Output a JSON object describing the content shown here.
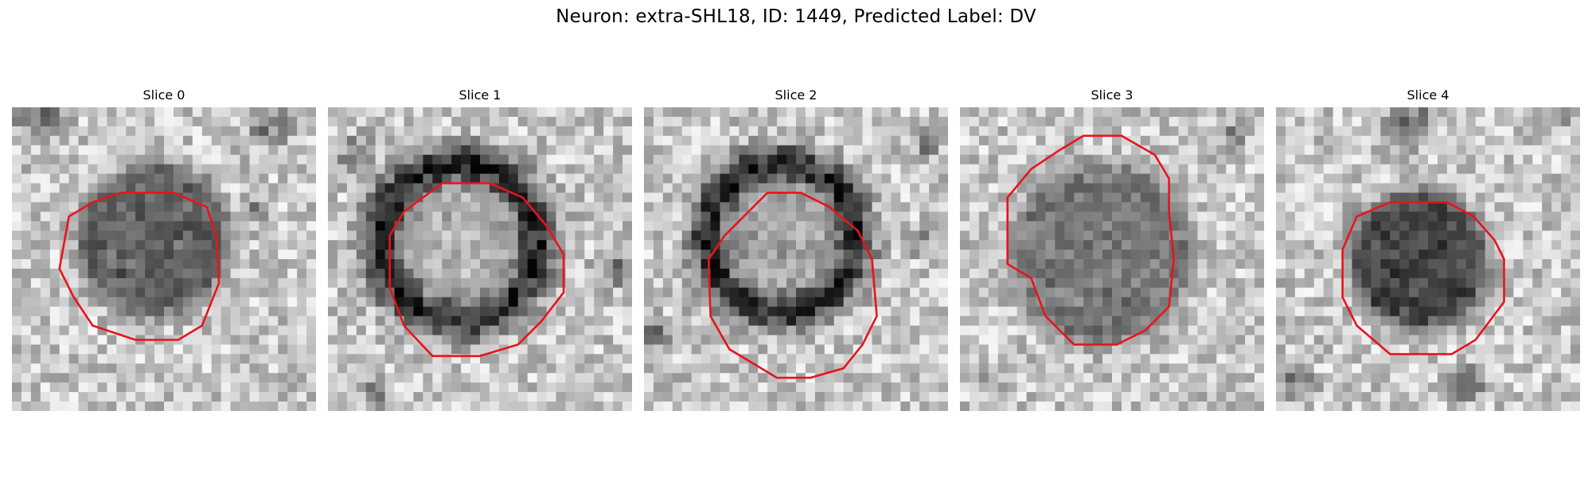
{
  "figure": {
    "title": "Neuron: extra-SHL18, ID: 1449, Predicted Label: DV"
  },
  "colors": {
    "outline": "#e8141a",
    "background": "#ffffff"
  },
  "panels": [
    {
      "title": "Slice 0",
      "cell": "dark-solid-blob"
    },
    {
      "title": "Slice 1",
      "cell": "dark-ring-light-center"
    },
    {
      "title": "Slice 2",
      "cell": "dark-ring-gray-center"
    },
    {
      "title": "Slice 3",
      "cell": "speckled-dark-blob"
    },
    {
      "title": "Slice 4",
      "cell": "dark-solid-blob"
    }
  ]
}
